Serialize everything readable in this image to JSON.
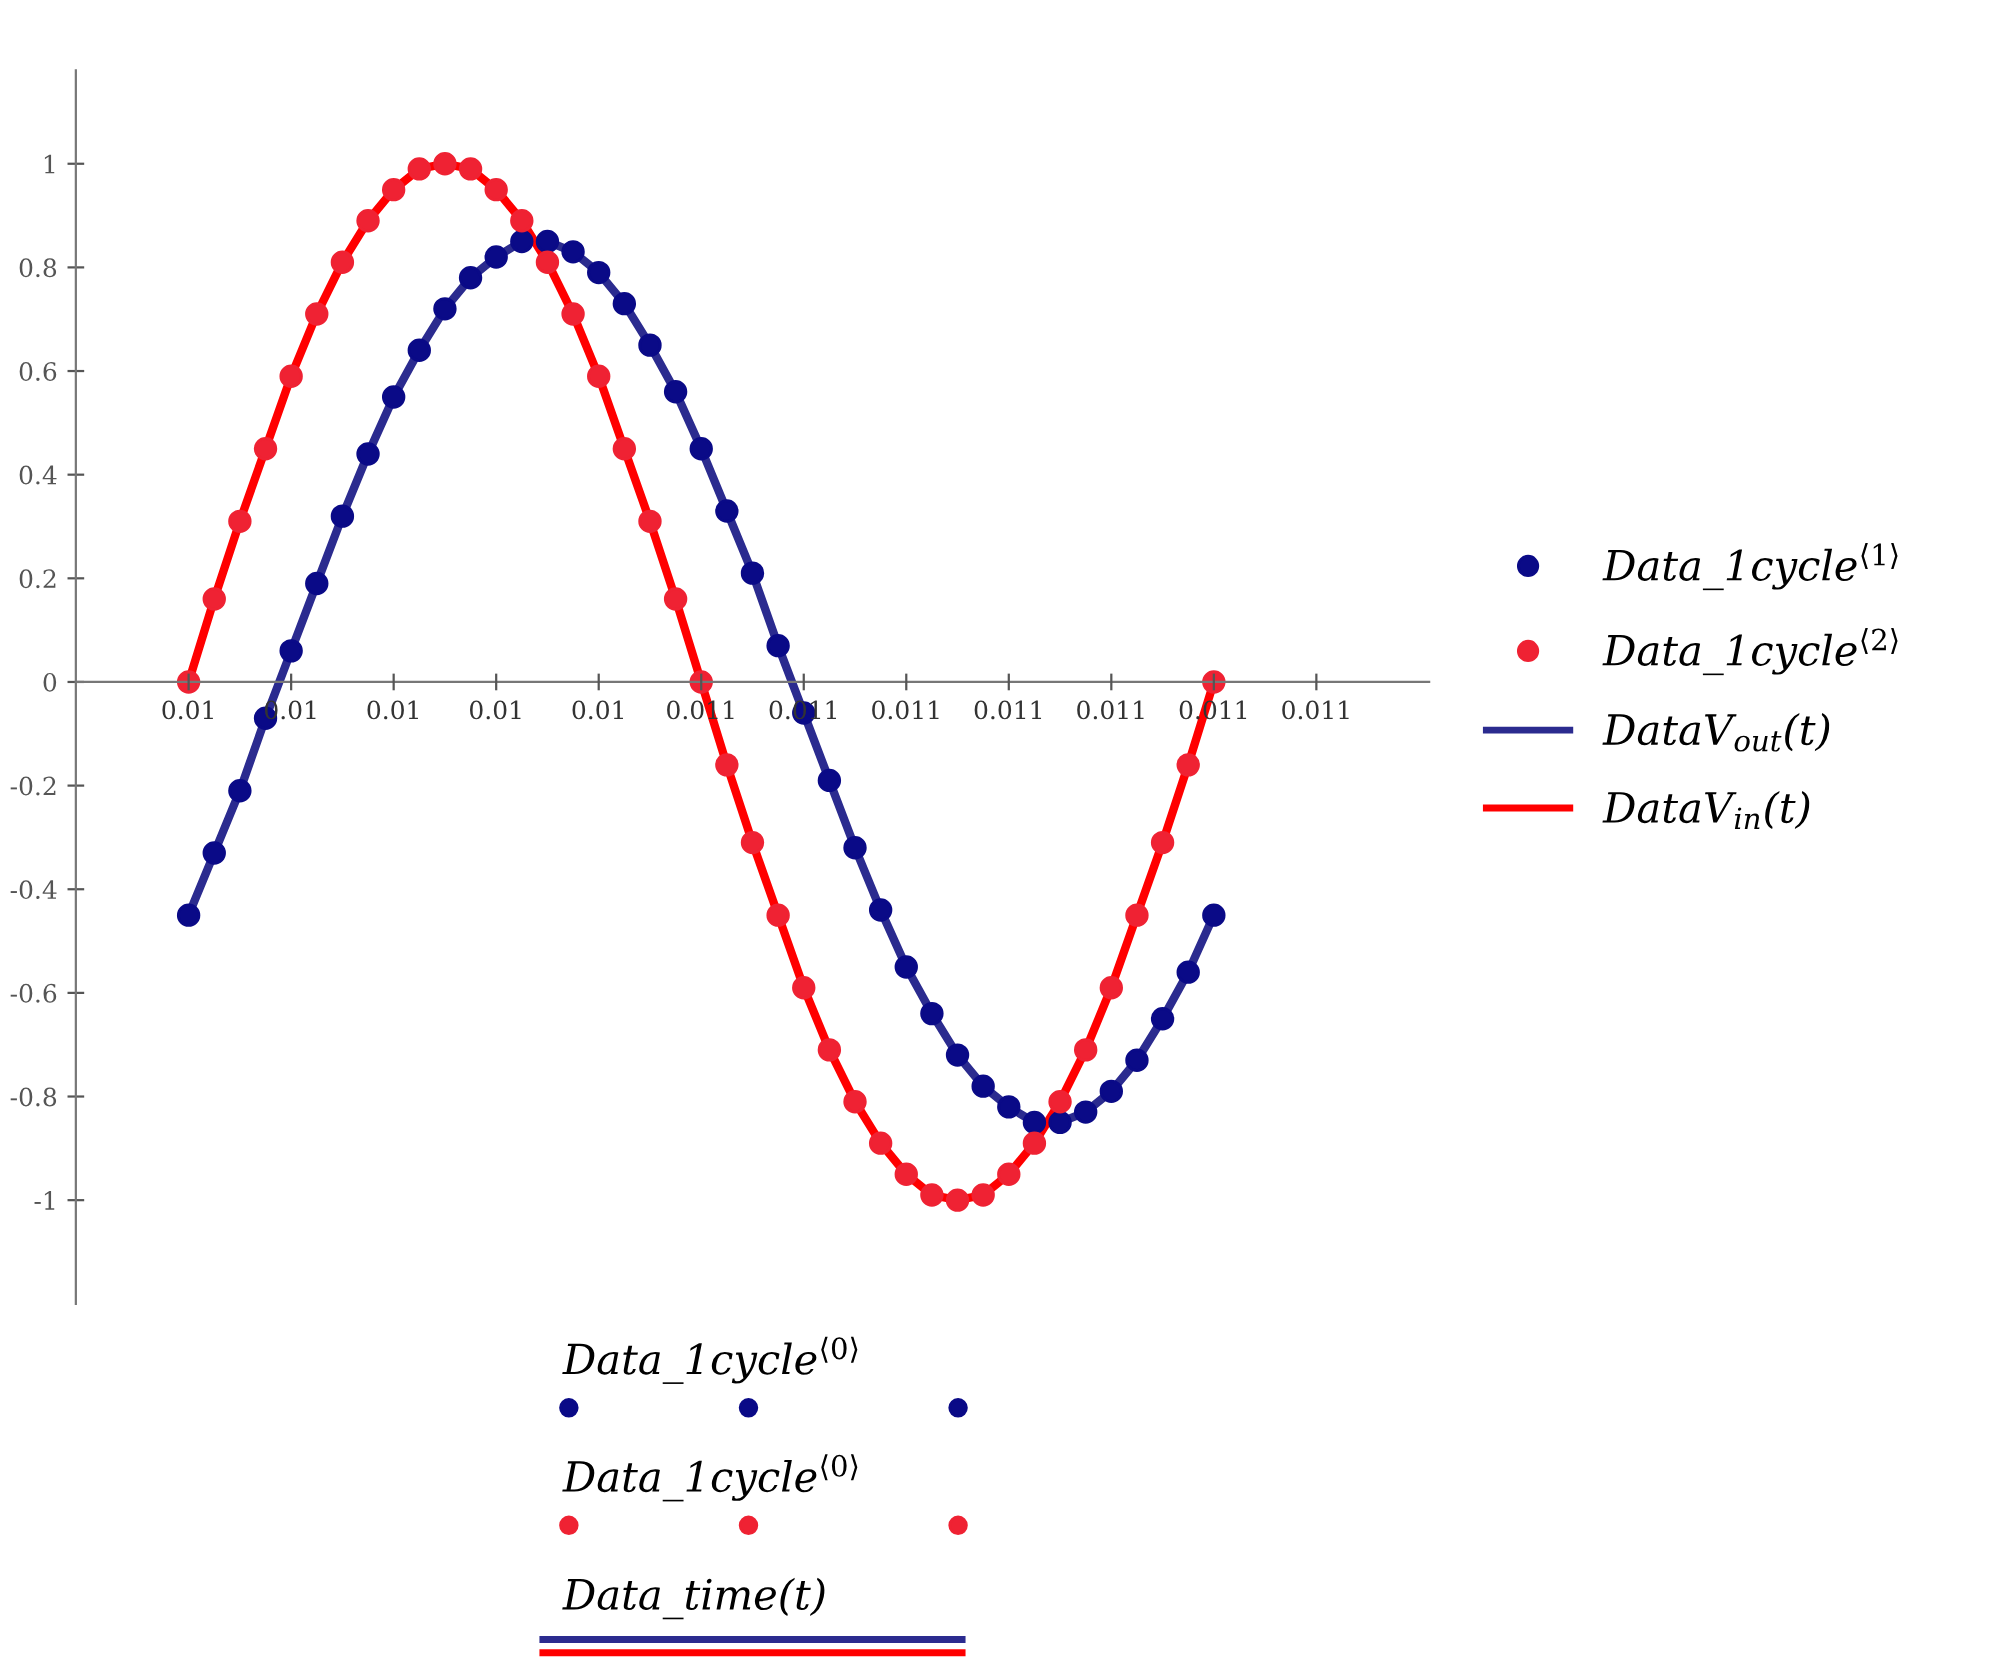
{
  "chart_data": {
    "type": "line",
    "x": [
      0.01,
      0.010025,
      0.01005,
      0.010075,
      0.0101,
      0.010125,
      0.01015,
      0.010175,
      0.0102,
      0.010225,
      0.01025,
      0.010275,
      0.0103,
      0.010325,
      0.01035,
      0.010375,
      0.0104,
      0.010425,
      0.01045,
      0.010475,
      0.0105,
      0.010525,
      0.01055,
      0.010575,
      0.0106,
      0.010625,
      0.01065,
      0.010675,
      0.0107,
      0.010725,
      0.01075,
      0.010775,
      0.0108,
      0.010825,
      0.01085,
      0.010875,
      0.0109,
      0.010925,
      0.01095,
      0.010975,
      0.011
    ],
    "series": [
      {
        "name": "DataV$_{out}$(t)",
        "color": "#2b2b8f",
        "values": [
          -0.45,
          -0.33,
          -0.21,
          -0.07,
          0.06,
          0.19,
          0.32,
          0.44,
          0.55,
          0.64,
          0.72,
          0.78,
          0.82,
          0.85,
          0.85,
          0.83,
          0.79,
          0.73,
          0.65,
          0.56,
          0.45,
          0.33,
          0.21,
          0.07,
          -0.06,
          -0.19,
          -0.32,
          -0.44,
          -0.55,
          -0.64,
          -0.72,
          -0.78,
          -0.82,
          -0.85,
          -0.85,
          -0.83,
          -0.79,
          -0.73,
          -0.65,
          -0.56,
          -0.45
        ]
      },
      {
        "name": "DataV$_{in}$(t)",
        "color": "#ff0000",
        "values": [
          0,
          0.16,
          0.31,
          0.45,
          0.59,
          0.71,
          0.81,
          0.89,
          0.95,
          0.99,
          1,
          0.99,
          0.95,
          0.89,
          0.81,
          0.71,
          0.59,
          0.45,
          0.31,
          0.16,
          0,
          -0.16,
          -0.31,
          -0.45,
          -0.59,
          -0.71,
          -0.81,
          -0.89,
          -0.95,
          -0.99,
          -1,
          -0.99,
          -0.95,
          -0.89,
          -0.81,
          -0.71,
          -0.59,
          -0.45,
          -0.31,
          -0.16,
          0
        ]
      },
      {
        "name": "Data_1cycle$^{⟨1⟩}$",
        "type": "scatter",
        "color": "#0a0a87",
        "marker": "circle",
        "values": [
          -0.45,
          -0.33,
          -0.21,
          -0.07,
          0.06,
          0.19,
          0.32,
          0.44,
          0.55,
          0.64,
          0.72,
          0.78,
          0.82,
          0.85,
          0.85,
          0.83,
          0.79,
          0.73,
          0.65,
          0.56,
          0.45,
          0.33,
          0.21,
          0.07,
          -0.06,
          -0.19,
          -0.32,
          -0.44,
          -0.55,
          -0.64,
          -0.72,
          -0.78,
          -0.82,
          -0.85,
          -0.85,
          -0.83,
          -0.79,
          -0.73,
          -0.65,
          -0.56,
          -0.45
        ]
      },
      {
        "name": "Data_1cycle$^{⟨2⟩}$",
        "type": "scatter",
        "color": "#ef2233",
        "marker": "circle",
        "values": [
          0,
          0.16,
          0.31,
          0.45,
          0.59,
          0.71,
          0.81,
          0.89,
          0.95,
          0.99,
          1,
          0.99,
          0.95,
          0.89,
          0.81,
          0.71,
          0.59,
          0.45,
          0.31,
          0.16,
          0,
          -0.16,
          -0.31,
          -0.45,
          -0.59,
          -0.71,
          -0.81,
          -0.89,
          -0.95,
          -0.99,
          -1,
          -0.99,
          -0.95,
          -0.89,
          -0.81,
          -0.71,
          -0.59,
          -0.45,
          -0.31,
          -0.16,
          0
        ]
      }
    ],
    "xlim": [
      0.00989,
      0.01121
    ],
    "xticks": [
      {
        "value": 0.01,
        "label": "0.01"
      },
      {
        "value": 0.0101,
        "label": "0.01"
      },
      {
        "value": 0.0102,
        "label": "0.01"
      },
      {
        "value": 0.0103,
        "label": "0.01"
      },
      {
        "value": 0.0104,
        "label": "0.01"
      },
      {
        "value": 0.0105,
        "label": "0.011"
      },
      {
        "value": 0.0106,
        "label": "0.011"
      },
      {
        "value": 0.0107,
        "label": "0.011"
      },
      {
        "value": 0.0108,
        "label": "0.011"
      },
      {
        "value": 0.0109,
        "label": "0.011"
      },
      {
        "value": 0.011,
        "label": "0.011"
      },
      {
        "value": 0.0111,
        "label": "0.011"
      }
    ],
    "ylim": [
      -1.2,
      1.18
    ],
    "yticks": [
      -1,
      -0.8,
      -0.6,
      -0.4,
      -0.2,
      0,
      0.2,
      0.4,
      0.6,
      0.8,
      1
    ],
    "grid": false,
    "legend": "right",
    "annotations": [
      "Data_1cycle$^{⟨0⟩}$",
      "Data_1cycle$^{⟨0⟩}$",
      "Data_time(t)"
    ]
  }
}
